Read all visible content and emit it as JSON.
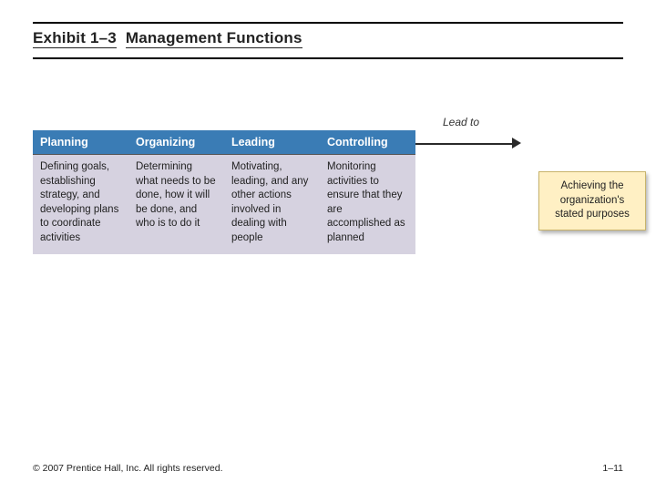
{
  "title": {
    "exhibit_label": "Exhibit 1–3",
    "title_text": "Management Functions"
  },
  "header_row_bg": "#3a7cb5",
  "body_row_bg": "#d6d2e0",
  "outcome_bg": "#fff0c4",
  "columns": [
    {
      "header": "Planning",
      "body": "Defining goals, establishing strategy, and developing plans to coordinate activities"
    },
    {
      "header": "Organizing",
      "body": "Determining what needs to be done, how it will be done, and who is to do it"
    },
    {
      "header": "Leading",
      "body": "Motivating, leading, and any other actions involved in dealing with people"
    },
    {
      "header": "Controlling",
      "body": "Monitoring activities to ensure that they are accomplished as planned"
    }
  ],
  "lead_to_label": "Lead to",
  "outcome_text": "Achieving the organization's stated purposes",
  "footer": {
    "copyright": "© 2007 Prentice Hall, Inc. All rights reserved.",
    "page": "1–11"
  }
}
